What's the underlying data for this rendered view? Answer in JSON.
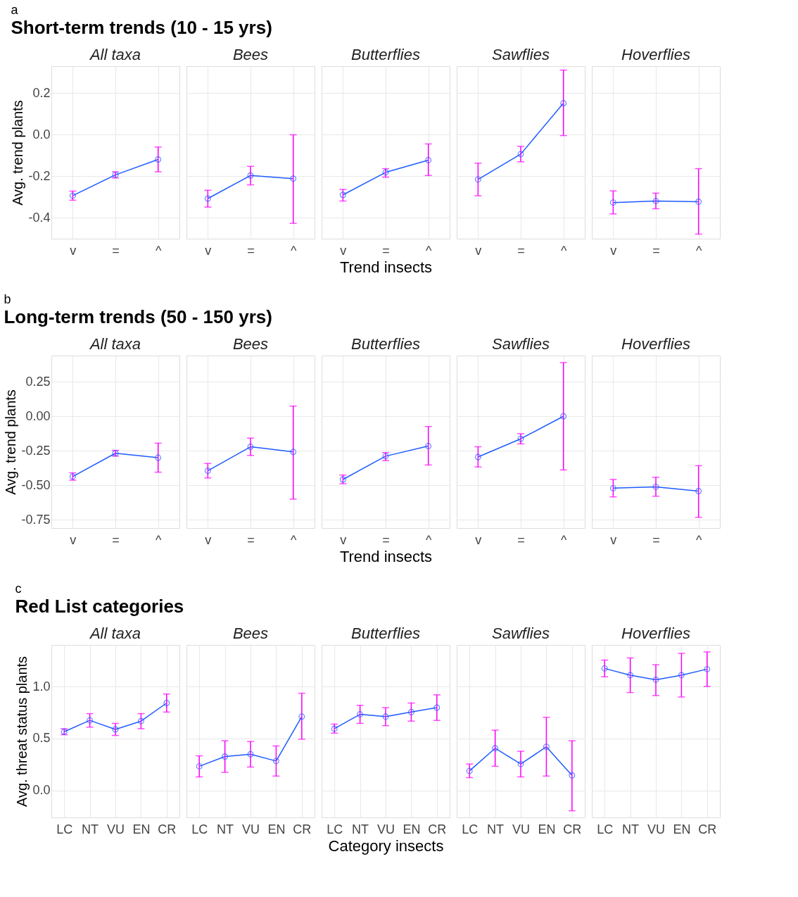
{
  "chart_data": [
    {
      "type": "line",
      "title": "All taxa",
      "annotations": [
        "a",
        "Short-term trends (10 - 15 yrs)"
      ],
      "ylabel": "Avg. trend plants",
      "categories": [
        "v",
        "=",
        "^"
      ],
      "ylim": [
        -0.5,
        0.33
      ],
      "yticks": [
        -0.4,
        -0.2,
        {
          "value": 0.0,
          "label": "0.0"
        },
        0.2
      ],
      "grid": true,
      "marker": "circle",
      "series": [
        {
          "color": "#1f5bff",
          "values": [
            -0.293,
            -0.193,
            -0.119
          ],
          "errors": [
            [
              -0.315,
              -0.271
            ],
            [
              -0.208,
              -0.178
            ],
            [
              -0.178,
              -0.059
            ]
          ]
        }
      ]
    },
    {
      "type": "line",
      "title": "Bees",
      "tick_labels": "x",
      "categories": [
        "v",
        "=",
        "^"
      ],
      "ylim": [
        -0.5,
        0.33
      ],
      "yticks": [
        -0.4,
        -0.2,
        0.0,
        0.2
      ],
      "grid": true,
      "marker": "circle",
      "series": [
        {
          "color": "#1f5bff",
          "values": [
            -0.307,
            -0.196,
            -0.211
          ],
          "errors": [
            [
              -0.348,
              -0.267
            ],
            [
              -0.241,
              -0.152
            ],
            [
              -0.426,
              0.0
            ]
          ]
        }
      ]
    },
    {
      "type": "line",
      "title": "Butterflies",
      "xlabel": "Trend insects",
      "tick_labels": "x",
      "categories": [
        "v",
        "=",
        "^"
      ],
      "ylim": [
        -0.5,
        0.33
      ],
      "yticks": [
        -0.4,
        -0.2,
        0.0,
        0.2
      ],
      "grid": true,
      "marker": "circle",
      "series": [
        {
          "color": "#1f5bff",
          "values": [
            -0.289,
            -0.181,
            -0.122
          ],
          "errors": [
            [
              -0.319,
              -0.263
            ],
            [
              -0.204,
              -0.163
            ],
            [
              -0.196,
              -0.044
            ]
          ]
        }
      ]
    },
    {
      "type": "line",
      "title": "Sawflies",
      "tick_labels": "x",
      "categories": [
        "v",
        "=",
        "^"
      ],
      "ylim": [
        -0.5,
        0.33
      ],
      "yticks": [
        -0.4,
        -0.2,
        0.0,
        0.2
      ],
      "grid": true,
      "marker": "circle",
      "series": [
        {
          "color": "#1f5bff",
          "values": [
            -0.215,
            -0.093,
            0.152
          ],
          "errors": [
            [
              -0.293,
              -0.137
            ],
            [
              -0.13,
              -0.056
            ],
            [
              -0.004,
              0.311
            ]
          ]
        }
      ]
    },
    {
      "type": "line",
      "title": "Hoverflies",
      "tick_labels": "x",
      "categories": [
        "v",
        "=",
        "^"
      ],
      "ylim": [
        -0.5,
        0.33
      ],
      "yticks": [
        -0.4,
        -0.2,
        0.0,
        0.2
      ],
      "grid": true,
      "marker": "circle",
      "series": [
        {
          "color": "#1f5bff",
          "values": [
            -0.326,
            -0.319,
            -0.322
          ],
          "errors": [
            [
              -0.381,
              -0.27
            ],
            [
              -0.356,
              -0.281
            ],
            [
              -0.478,
              -0.163
            ]
          ]
        }
      ]
    },
    {
      "type": "line",
      "title": "All taxa",
      "annotations": [
        "b",
        "Long-term trends (50 - 150 yrs)"
      ],
      "ylabel": "Avg. trend plants",
      "categories": [
        "v",
        "=",
        "^"
      ],
      "ylim": [
        -0.81,
        0.44
      ],
      "yticks": [
        -0.75,
        {
          "value": -0.5,
          "label": "-0.50"
        },
        -0.25,
        {
          "value": 0.0,
          "label": "0.00"
        },
        0.25
      ],
      "grid": true,
      "marker": "circle",
      "series": [
        {
          "color": "#1f5bff",
          "values": [
            -0.437,
            -0.268,
            -0.3
          ],
          "errors": [
            [
              -0.463,
              -0.41
            ],
            [
              -0.289,
              -0.247
            ],
            [
              -0.405,
              -0.195
            ]
          ]
        }
      ]
    },
    {
      "type": "line",
      "title": "Bees",
      "tick_labels": "x",
      "categories": [
        "v",
        "=",
        "^"
      ],
      "ylim": [
        -0.81,
        0.44
      ],
      "yticks": [
        -0.75,
        -0.5,
        -0.25,
        0.0,
        0.25
      ],
      "grid": true,
      "marker": "circle",
      "series": [
        {
          "color": "#1f5bff",
          "values": [
            -0.395,
            -0.221,
            -0.258
          ],
          "errors": [
            [
              -0.447,
              -0.342
            ],
            [
              -0.284,
              -0.158
            ],
            [
              -0.6,
              0.074
            ]
          ]
        }
      ]
    },
    {
      "type": "line",
      "title": "Butterflies",
      "xlabel": "Trend insects",
      "tick_labels": "x",
      "categories": [
        "v",
        "=",
        "^"
      ],
      "ylim": [
        -0.81,
        0.44
      ],
      "yticks": [
        -0.75,
        -0.5,
        -0.25,
        0.0,
        0.25
      ],
      "grid": true,
      "marker": "circle",
      "series": [
        {
          "color": "#1f5bff",
          "values": [
            -0.458,
            -0.289,
            -0.216
          ],
          "errors": [
            [
              -0.489,
              -0.426
            ],
            [
              -0.321,
              -0.263
            ],
            [
              -0.353,
              -0.074
            ]
          ]
        }
      ]
    },
    {
      "type": "line",
      "title": "Sawflies",
      "tick_labels": "x",
      "categories": [
        "v",
        "=",
        "^"
      ],
      "ylim": [
        -0.81,
        0.44
      ],
      "yticks": [
        -0.75,
        -0.5,
        -0.25,
        0.0,
        0.25
      ],
      "grid": true,
      "marker": "circle",
      "series": [
        {
          "color": "#1f5bff",
          "values": [
            -0.295,
            -0.163,
            0.0
          ],
          "errors": [
            [
              -0.368,
              -0.221
            ],
            [
              -0.2,
              -0.126
            ],
            [
              -0.389,
              0.389
            ]
          ]
        }
      ]
    },
    {
      "type": "line",
      "title": "Hoverflies",
      "tick_labels": "x",
      "categories": [
        "v",
        "=",
        "^"
      ],
      "ylim": [
        -0.81,
        0.44
      ],
      "yticks": [
        -0.75,
        -0.5,
        -0.25,
        0.0,
        0.25
      ],
      "grid": true,
      "marker": "circle",
      "series": [
        {
          "color": "#1f5bff",
          "values": [
            -0.521,
            -0.511,
            -0.542
          ],
          "errors": [
            [
              -0.584,
              -0.458
            ],
            [
              -0.579,
              -0.442
            ],
            [
              -0.732,
              -0.358
            ]
          ]
        }
      ]
    },
    {
      "type": "line",
      "title": "All taxa",
      "annotations": [
        "c",
        "Red List categories"
      ],
      "ylabel": "Avg. threat status plants",
      "categories": [
        "LC",
        "NT",
        "VU",
        "EN",
        "CR"
      ],
      "ylim": [
        -0.26,
        1.4
      ],
      "yticks": [
        {
          "value": 0.0,
          "label": "0.0"
        },
        0.5,
        {
          "value": 1.0,
          "label": "1.0"
        }
      ],
      "grid": true,
      "marker": "circle",
      "series": [
        {
          "color": "#1f5bff",
          "values": [
            0.565,
            0.674,
            0.587,
            0.667,
            0.841
          ],
          "errors": [
            [
              0.536,
              0.594
            ],
            [
              0.609,
              0.739
            ],
            [
              0.529,
              0.645
            ],
            [
              0.594,
              0.739
            ],
            [
              0.754,
              0.928
            ]
          ]
        }
      ]
    },
    {
      "type": "line",
      "title": "Bees",
      "tick_labels": "x",
      "categories": [
        "LC",
        "NT",
        "VU",
        "EN",
        "CR"
      ],
      "ylim": [
        -0.26,
        1.4
      ],
      "yticks": [
        0.0,
        0.5,
        1.0
      ],
      "grid": true,
      "marker": "circle",
      "series": [
        {
          "color": "#1f5bff",
          "values": [
            0.232,
            0.326,
            0.348,
            0.283,
            0.71
          ],
          "errors": [
            [
              0.13,
              0.333
            ],
            [
              0.174,
              0.478
            ],
            [
              0.225,
              0.471
            ],
            [
              0.138,
              0.428
            ],
            [
              0.493,
              0.935
            ]
          ]
        }
      ]
    },
    {
      "type": "line",
      "title": "Butterflies",
      "xlabel": "Category insects",
      "tick_labels": "x",
      "categories": [
        "LC",
        "NT",
        "VU",
        "EN",
        "CR"
      ],
      "ylim": [
        -0.26,
        1.4
      ],
      "yticks": [
        0.0,
        0.5,
        1.0
      ],
      "grid": true,
      "marker": "circle",
      "series": [
        {
          "color": "#1f5bff",
          "values": [
            0.594,
            0.732,
            0.71,
            0.754,
            0.797
          ],
          "errors": [
            [
              0.551,
              0.638
            ],
            [
              0.645,
              0.819
            ],
            [
              0.623,
              0.797
            ],
            [
              0.667,
              0.841
            ],
            [
              0.674,
              0.92
            ]
          ]
        }
      ]
    },
    {
      "type": "line",
      "title": "Sawflies",
      "tick_labels": "x",
      "categories": [
        "LC",
        "NT",
        "VU",
        "EN",
        "CR"
      ],
      "ylim": [
        -0.26,
        1.4
      ],
      "yticks": [
        0.0,
        0.5,
        1.0
      ],
      "grid": true,
      "marker": "circle",
      "series": [
        {
          "color": "#1f5bff",
          "values": [
            0.188,
            0.406,
            0.254,
            0.42,
            0.145
          ],
          "errors": [
            [
              0.123,
              0.254
            ],
            [
              0.232,
              0.58
            ],
            [
              0.13,
              0.377
            ],
            [
              0.138,
              0.703
            ],
            [
              -0.196,
              0.478
            ]
          ]
        }
      ]
    },
    {
      "type": "line",
      "title": "Hoverflies",
      "tick_labels": "x",
      "categories": [
        "LC",
        "NT",
        "VU",
        "EN",
        "CR"
      ],
      "ylim": [
        -0.26,
        1.4
      ],
      "yticks": [
        0.0,
        0.5,
        1.0
      ],
      "grid": true,
      "marker": "circle",
      "series": [
        {
          "color": "#1f5bff",
          "values": [
            1.174,
            1.109,
            1.065,
            1.109,
            1.167
          ],
          "errors": [
            [
              1.094,
              1.254
            ],
            [
              0.942,
              1.275
            ],
            [
              0.913,
              1.21
            ],
            [
              0.899,
              1.319
            ],
            [
              1.0,
              1.333
            ]
          ]
        }
      ]
    }
  ]
}
